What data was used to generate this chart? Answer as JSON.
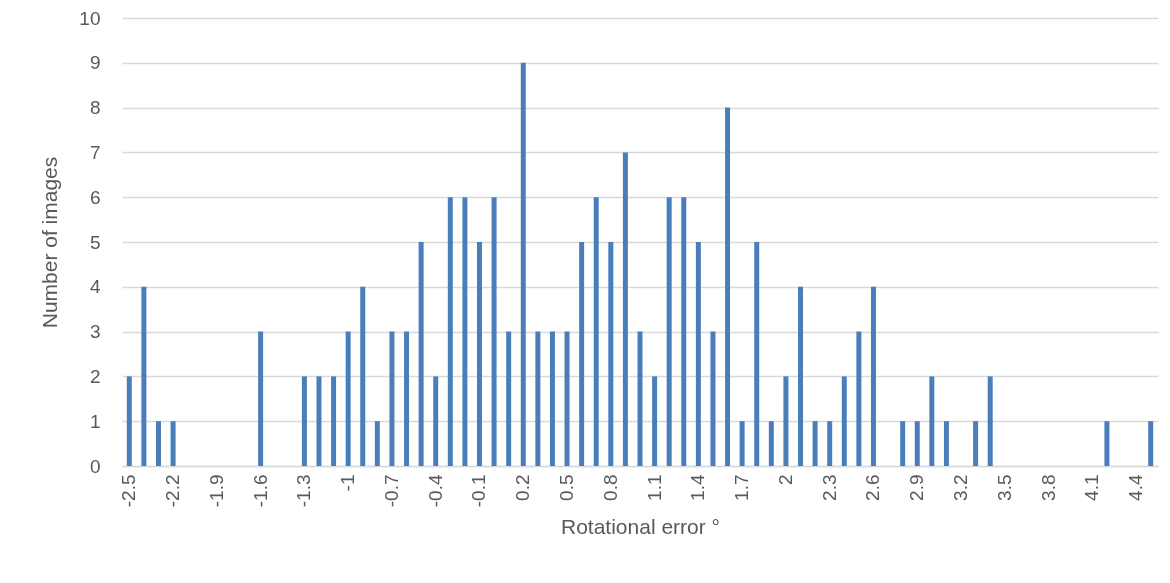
{
  "chart_data": {
    "type": "bar",
    "xlabel": "Rotational error °",
    "ylabel": "Number of images",
    "categories": [
      "-2.5",
      null,
      null,
      "-2.2",
      null,
      null,
      "-1.9",
      null,
      null,
      "-1.6",
      null,
      null,
      "-1.3",
      null,
      null,
      "-1",
      null,
      null,
      "-0.7",
      null,
      null,
      "-0.4",
      null,
      null,
      "-0.1",
      null,
      null,
      "0.2",
      null,
      null,
      "0.5",
      null,
      null,
      "0.8",
      null,
      null,
      "1.1",
      null,
      null,
      "1.4",
      null,
      null,
      "1.7",
      null,
      null,
      "2",
      null,
      null,
      "2.3",
      null,
      null,
      "2.6",
      null,
      null,
      "2.9",
      null,
      null,
      "3.2",
      null,
      null,
      "3.5",
      null,
      null,
      "3.8",
      null,
      null,
      "4.1",
      null,
      null,
      "4.4",
      null
    ],
    "values": [
      2,
      4,
      1,
      1,
      0,
      0,
      0,
      0,
      0,
      3,
      0,
      0,
      2,
      2,
      2,
      3,
      4,
      1,
      3,
      3,
      5,
      2,
      6,
      6,
      5,
      6,
      3,
      9,
      3,
      3,
      3,
      5,
      6,
      5,
      7,
      3,
      2,
      6,
      6,
      5,
      3,
      8,
      1,
      5,
      1,
      2,
      4,
      1,
      1,
      2,
      3,
      4,
      0,
      1,
      1,
      2,
      1,
      0,
      1,
      2,
      0,
      0,
      0,
      0,
      0,
      0,
      0,
      1,
      0,
      0,
      1
    ],
    "color": "#4a7ebb",
    "ylim": [
      0,
      10
    ],
    "yticks": [
      0,
      1,
      2,
      3,
      4,
      5,
      6,
      7,
      8,
      9,
      10
    ],
    "grid": "y"
  }
}
